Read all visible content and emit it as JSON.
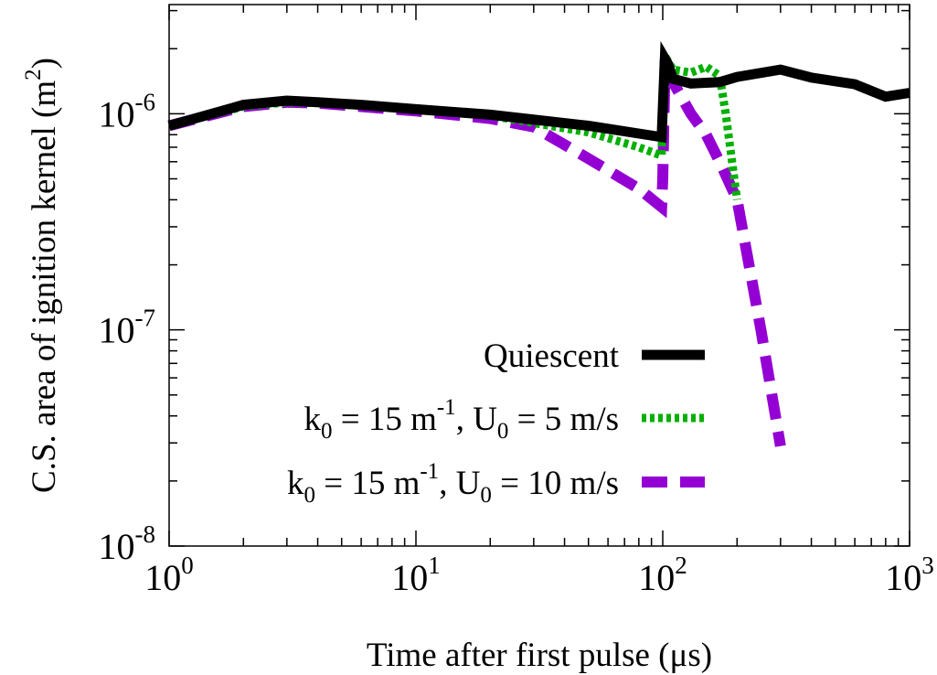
{
  "chart_data": {
    "type": "line",
    "title": "",
    "xlabel": "Time after first pulse (μs)",
    "ylabel": "C.S. area of ignition kernel (m²)",
    "xscale": "log",
    "yscale": "log",
    "xlim": [
      1,
      1000
    ],
    "ylim": [
      1e-08,
      3.2e-06
    ],
    "grid": false,
    "legend_position": "lower-right",
    "x_ticks": [
      {
        "value": 1,
        "base": "10",
        "exp": "0"
      },
      {
        "value": 10,
        "base": "10",
        "exp": "1"
      },
      {
        "value": 100,
        "base": "10",
        "exp": "2"
      },
      {
        "value": 1000,
        "base": "10",
        "exp": "3"
      }
    ],
    "y_ticks": [
      {
        "value": 1e-08,
        "base": "10",
        "exp": "-8"
      },
      {
        "value": 1e-07,
        "base": "10",
        "exp": "-7"
      },
      {
        "value": 1e-06,
        "base": "10",
        "exp": "-6"
      }
    ],
    "series": [
      {
        "name": "Quiescent",
        "legend_parts": [
          {
            "t": "Quiescent"
          }
        ],
        "color": "#000000",
        "dash": "solid",
        "x": [
          1,
          2,
          3,
          4,
          6,
          10,
          20,
          50,
          80,
          99,
          100,
          102,
          105,
          110,
          130,
          170,
          200,
          300,
          400,
          600,
          800,
          1000
        ],
        "y": [
          8.8e-07,
          1.1e-06,
          1.15e-06,
          1.13e-06,
          1.1e-06,
          1.05e-06,
          9.9e-07,
          8.8e-07,
          8.1e-07,
          7.8e-07,
          1.05e-06,
          1.8e-06,
          1.7e-06,
          1.45e-06,
          1.38e-06,
          1.4e-06,
          1.48e-06,
          1.6e-06,
          1.47e-06,
          1.37e-06,
          1.2e-06,
          1.25e-06
        ]
      },
      {
        "name": "k0 = 15 m-1, U0 = 5 m/s",
        "legend_parts": [
          {
            "t": "k"
          },
          {
            "t": "0",
            "s": "sub"
          },
          {
            "t": " = 15 m"
          },
          {
            "t": "-1",
            "s": "sup"
          },
          {
            "t": ", U"
          },
          {
            "t": "0",
            "s": "sub"
          },
          {
            "t": " = 5 m/s"
          }
        ],
        "color": "#00b000",
        "dash": "dotted",
        "x": [
          1,
          2,
          3,
          4,
          6,
          10,
          20,
          50,
          80,
          99,
          100,
          102,
          105,
          110,
          130,
          150,
          170,
          180,
          200
        ],
        "y": [
          8.8e-07,
          1.08e-06,
          1.13e-06,
          1.12e-06,
          1.09e-06,
          1.04e-06,
          9.8e-07,
          8.2e-07,
          7e-07,
          6.4e-07,
          1e-06,
          1.7e-06,
          1.75e-06,
          1.6e-06,
          1.55e-06,
          1.65e-06,
          1.5e-06,
          1e-06,
          4e-07
        ]
      },
      {
        "name": "k0 = 15 m-1, U0 = 10 m/s",
        "legend_parts": [
          {
            "t": "k"
          },
          {
            "t": "0",
            "s": "sub"
          },
          {
            "t": " = 15 m"
          },
          {
            "t": "-1",
            "s": "sup"
          },
          {
            "t": ", U"
          },
          {
            "t": "0",
            "s": "sub"
          },
          {
            "t": " = 10 m/s"
          }
        ],
        "color": "#9400d3",
        "dash": "dashed",
        "x": [
          1,
          2,
          3,
          4,
          6,
          10,
          20,
          30,
          50,
          80,
          99,
          100,
          102,
          105,
          110,
          130,
          150,
          170,
          200,
          250,
          300
        ],
        "y": [
          8.8e-07,
          1.08e-06,
          1.13e-06,
          1.12e-06,
          1.08e-06,
          1.03e-06,
          9.5e-07,
          8.7e-07,
          6.2e-07,
          4.5e-07,
          3.7e-07,
          5e-07,
          1.55e-06,
          1.5e-06,
          1.4e-06,
          1e-06,
          8e-07,
          6e-07,
          4e-07,
          1e-07,
          2.9e-08
        ]
      }
    ]
  }
}
